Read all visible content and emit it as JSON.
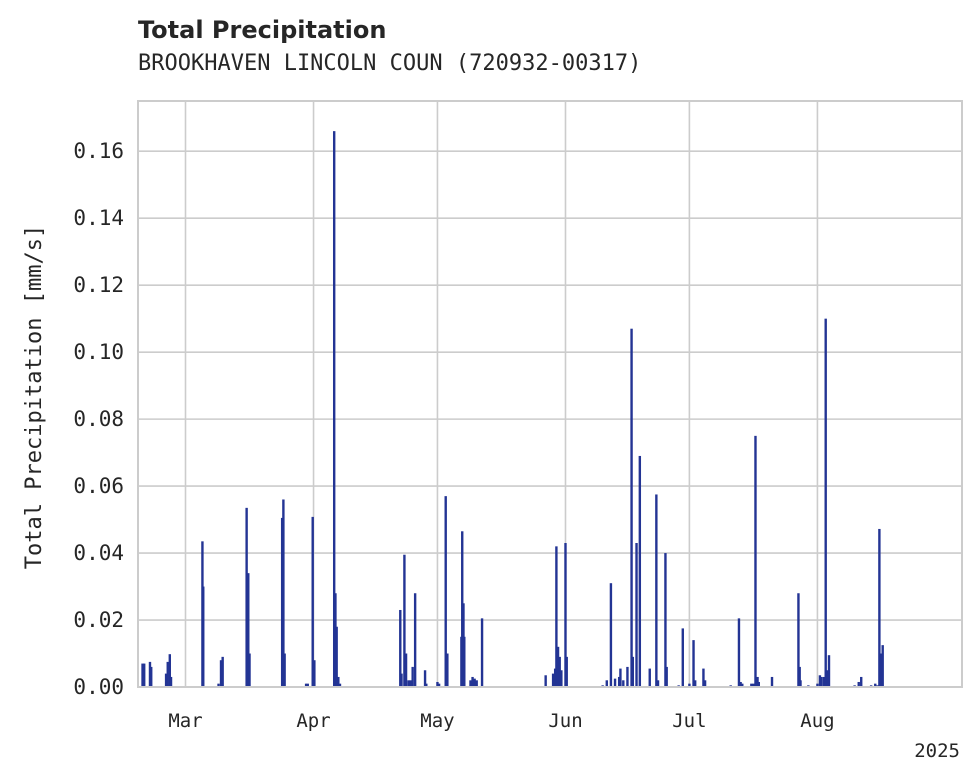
{
  "chart_data": {
    "type": "bar",
    "title": "Total Precipitation",
    "subtitle": "BROOKHAVEN LINCOLN COUN (720932-00317)",
    "ylabel": "Total Precipitation [mm/s]",
    "xlabel": "",
    "year_label": "2025",
    "ylim": [
      0,
      0.175
    ],
    "xlim_days": [
      -11.5,
      188
    ],
    "x_reference": "day 0 = Mar 1, 2025",
    "grid": true,
    "color": "#233494",
    "y_ticks": [
      {
        "value": 0.0,
        "label": "0.00"
      },
      {
        "value": 0.02,
        "label": "0.02"
      },
      {
        "value": 0.04,
        "label": "0.04"
      },
      {
        "value": 0.06,
        "label": "0.06"
      },
      {
        "value": 0.08,
        "label": "0.08"
      },
      {
        "value": 0.1,
        "label": "0.10"
      },
      {
        "value": 0.12,
        "label": "0.12"
      },
      {
        "value": 0.14,
        "label": "0.14"
      },
      {
        "value": 0.16,
        "label": "0.16"
      }
    ],
    "x_ticks": [
      {
        "day": 0,
        "label": "Mar"
      },
      {
        "day": 31,
        "label": "Apr"
      },
      {
        "day": 61,
        "label": "May"
      },
      {
        "day": 92,
        "label": "Jun"
      },
      {
        "day": 122,
        "label": "Jul"
      },
      {
        "day": 153,
        "label": "Aug"
      }
    ],
    "series": [
      {
        "name": "Total Precipitation",
        "points": [
          [
            -10.4,
            0.007
          ],
          [
            -10.0,
            0.007
          ],
          [
            -8.6,
            0.0075
          ],
          [
            -8.3,
            0.006
          ],
          [
            -4.7,
            0.004
          ],
          [
            -4.3,
            0.0075
          ],
          [
            -3.8,
            0.0098
          ],
          [
            -3.5,
            0.003
          ],
          [
            4.1,
            0.0435
          ],
          [
            4.3,
            0.03
          ],
          [
            8.0,
            0.001
          ],
          [
            8.6,
            0.008
          ],
          [
            9.0,
            0.009
          ],
          [
            14.8,
            0.0535
          ],
          [
            15.2,
            0.034
          ],
          [
            15.5,
            0.01
          ],
          [
            23.4,
            0.0505
          ],
          [
            23.7,
            0.056
          ],
          [
            24.0,
            0.01
          ],
          [
            29.2,
            0.001
          ],
          [
            29.6,
            0.001
          ],
          [
            30.8,
            0.0508
          ],
          [
            31.2,
            0.008
          ],
          [
            36.0,
            0.166
          ],
          [
            36.3,
            0.028
          ],
          [
            36.6,
            0.018
          ],
          [
            37.0,
            0.003
          ],
          [
            37.4,
            0.001
          ],
          [
            52.0,
            0.023
          ],
          [
            52.3,
            0.004
          ],
          [
            53.0,
            0.0395
          ],
          [
            53.4,
            0.01
          ],
          [
            54.0,
            0.002
          ],
          [
            54.5,
            0.002
          ],
          [
            55.0,
            0.006
          ],
          [
            55.6,
            0.028
          ],
          [
            58.0,
            0.005
          ],
          [
            58.3,
            0.001
          ],
          [
            61.0,
            0.0015
          ],
          [
            61.4,
            0.001
          ],
          [
            63.0,
            0.057
          ],
          [
            63.4,
            0.01
          ],
          [
            66.8,
            0.015
          ],
          [
            67.0,
            0.0465
          ],
          [
            67.3,
            0.025
          ],
          [
            67.5,
            0.015
          ],
          [
            69.0,
            0.002
          ],
          [
            69.5,
            0.003
          ],
          [
            70.0,
            0.0025
          ],
          [
            70.5,
            0.002
          ],
          [
            71.8,
            0.0205
          ],
          [
            87.2,
            0.0035
          ],
          [
            89.0,
            0.004
          ],
          [
            89.5,
            0.0055
          ],
          [
            89.8,
            0.042
          ],
          [
            90.2,
            0.012
          ],
          [
            90.6,
            0.009
          ],
          [
            91.0,
            0.005
          ],
          [
            92.0,
            0.043
          ],
          [
            92.3,
            0.009
          ],
          [
            101.0,
            0.0005
          ],
          [
            102.0,
            0.002
          ],
          [
            103.0,
            0.031
          ],
          [
            104.0,
            0.0025
          ],
          [
            105.0,
            0.003
          ],
          [
            105.3,
            0.0055
          ],
          [
            106.0,
            0.002
          ],
          [
            107.0,
            0.006
          ],
          [
            108.0,
            0.107
          ],
          [
            108.3,
            0.009
          ],
          [
            109.2,
            0.043
          ],
          [
            110.0,
            0.069
          ],
          [
            112.4,
            0.0055
          ],
          [
            114.0,
            0.0575
          ],
          [
            114.4,
            0.002
          ],
          [
            116.2,
            0.04
          ],
          [
            116.5,
            0.006
          ],
          [
            119.4,
            0.0005
          ],
          [
            120.4,
            0.0175
          ],
          [
            122.0,
            0.001
          ],
          [
            123.0,
            0.014
          ],
          [
            123.4,
            0.002
          ],
          [
            125.4,
            0.0055
          ],
          [
            125.8,
            0.002
          ],
          [
            132.0,
            0.0005
          ],
          [
            134.0,
            0.0205
          ],
          [
            134.4,
            0.0015
          ],
          [
            134.8,
            0.001
          ],
          [
            137.0,
            0.001
          ],
          [
            137.5,
            0.001
          ],
          [
            138.0,
            0.075
          ],
          [
            138.5,
            0.003
          ],
          [
            138.8,
            0.0015
          ],
          [
            142.0,
            0.003
          ],
          [
            148.4,
            0.028
          ],
          [
            148.7,
            0.006
          ],
          [
            148.9,
            0.002
          ],
          [
            150.8,
            0.0005
          ],
          [
            153.0,
            0.001
          ],
          [
            153.6,
            0.0035
          ],
          [
            154.0,
            0.003
          ],
          [
            154.6,
            0.003
          ],
          [
            155.0,
            0.11
          ],
          [
            155.4,
            0.005
          ],
          [
            155.8,
            0.0095
          ],
          [
            162.0,
            0.0005
          ],
          [
            163.0,
            0.0015
          ],
          [
            163.6,
            0.003
          ],
          [
            166.0,
            0.0005
          ],
          [
            167.0,
            0.001
          ],
          [
            167.6,
            0.0005
          ],
          [
            168.0,
            0.0472
          ],
          [
            168.4,
            0.01
          ],
          [
            168.8,
            0.0125
          ]
        ]
      }
    ]
  }
}
